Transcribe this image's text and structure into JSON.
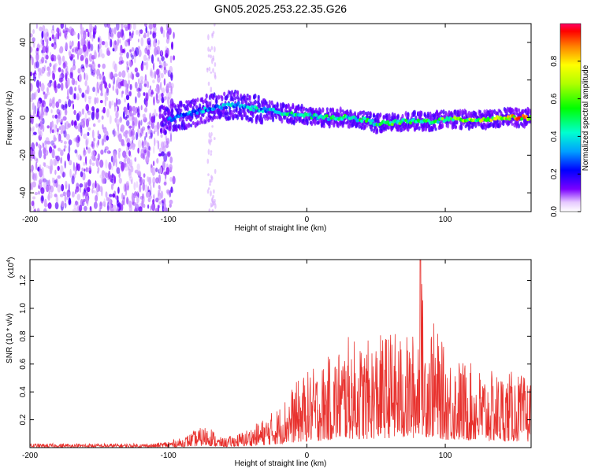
{
  "chart_data": [
    {
      "type": "heatmap",
      "title": "GN05.2025.253.22.35.G26",
      "xlabel": "Height of straight line (km)",
      "ylabel": "Frequency (Hz)",
      "xlim": [
        -200,
        162
      ],
      "ylim": [
        -50,
        50
      ],
      "x_ticks": [
        -200,
        -100,
        0,
        100
      ],
      "y_ticks": [
        -40,
        -20,
        0,
        20,
        40
      ],
      "colorbar": {
        "label": "Normalized spectral amplitude",
        "range": [
          0,
          1
        ],
        "ticks": [
          0.0,
          0.2,
          0.4,
          0.6,
          0.8
        ],
        "tick_labels": [
          "0.0",
          "0.2",
          "0.4",
          "0.6",
          "0.8"
        ],
        "colormap": "rainbow"
      },
      "ridge": {
        "x": [
          -100,
          -90,
          -80,
          -70,
          -60,
          -50,
          -40,
          -30,
          -20,
          -10,
          0,
          10,
          20,
          30,
          40,
          50,
          60,
          70,
          80,
          90,
          100,
          110,
          120,
          130,
          140,
          150,
          160
        ],
        "freq": [
          -1,
          1,
          3,
          5,
          6,
          7,
          5,
          4,
          3,
          2,
          1,
          0,
          0,
          0,
          -1,
          -3,
          -3,
          -2,
          -2,
          -2,
          -1,
          -1,
          -1,
          -1,
          0,
          0,
          0
        ],
        "amplitude": [
          0.3,
          0.35,
          0.38,
          0.4,
          0.42,
          0.45,
          0.45,
          0.45,
          0.45,
          0.5,
          0.5,
          0.55,
          0.55,
          0.55,
          0.55,
          0.55,
          0.6,
          0.6,
          0.6,
          0.6,
          0.65,
          0.7,
          0.75,
          0.8,
          0.85,
          0.9,
          0.95
        ]
      },
      "noise_region_x": [
        -200,
        -100
      ]
    },
    {
      "type": "line",
      "xlabel": "Height of straight line (km)",
      "ylabel": "SNR (10 * v/v)",
      "y_multiplier": "(x10",
      "y_multiplier_exp": "4",
      "y_multiplier_close": ")",
      "xlim": [
        -200,
        162
      ],
      "ylim": [
        0,
        1.35
      ],
      "x_ticks": [
        -200,
        -100,
        0,
        100
      ],
      "y_ticks": [
        0.2,
        0.4,
        0.6,
        0.8,
        1.0,
        1.2
      ],
      "y_tick_labels": [
        "0.2",
        "0.4",
        "0.6",
        "0.8",
        "1.0",
        "1.2"
      ],
      "color": "#e8322e",
      "envelope": {
        "x": [
          -200,
          -110,
          -100,
          -90,
          -85,
          -80,
          -75,
          -70,
          -65,
          -60,
          -50,
          -40,
          -30,
          -20,
          -10,
          0,
          10,
          20,
          30,
          40,
          50,
          60,
          70,
          80,
          82,
          85,
          90,
          100,
          110,
          120,
          130,
          140,
          150,
          160,
          162
        ],
        "y": [
          0.03,
          0.03,
          0.05,
          0.07,
          0.1,
          0.13,
          0.15,
          0.17,
          0.08,
          0.07,
          0.1,
          0.15,
          0.22,
          0.3,
          0.45,
          0.55,
          0.6,
          0.7,
          0.8,
          0.75,
          0.8,
          0.85,
          0.8,
          0.85,
          1.38,
          0.9,
          0.95,
          0.7,
          0.65,
          0.6,
          0.55,
          0.55,
          0.55,
          0.5,
          0.5
        ]
      }
    }
  ]
}
